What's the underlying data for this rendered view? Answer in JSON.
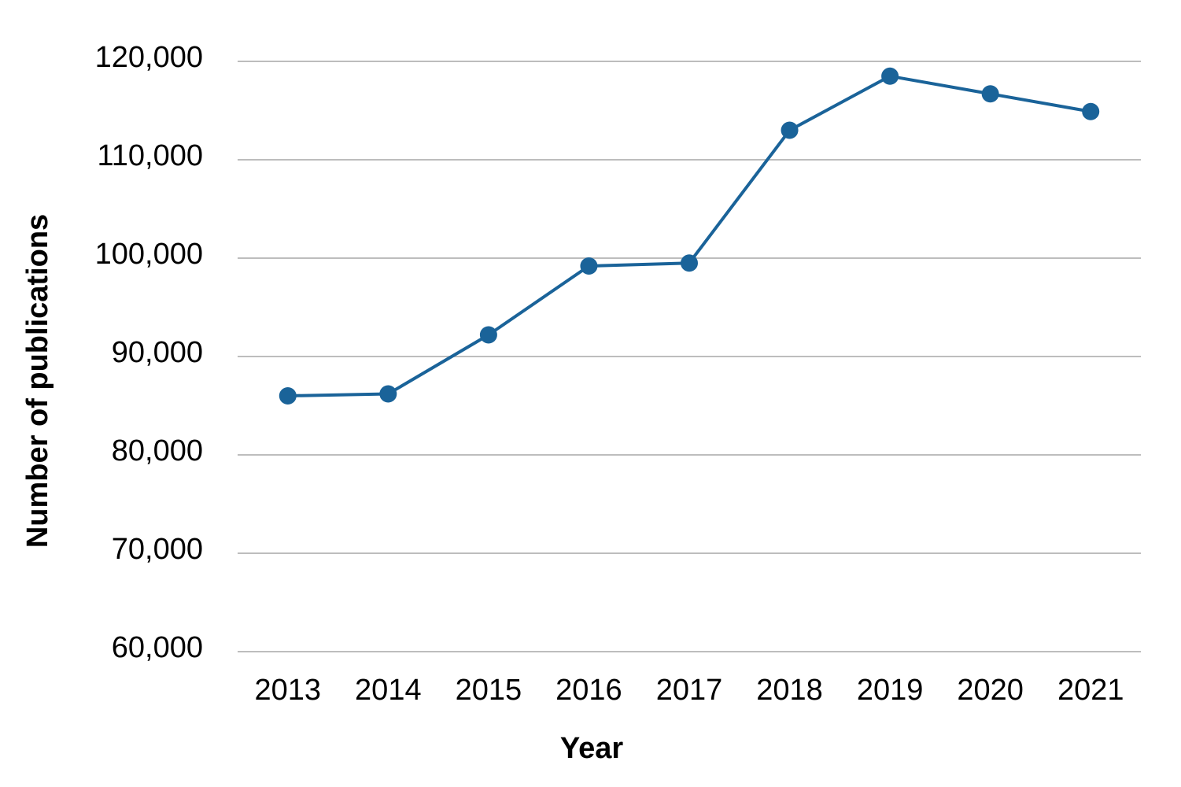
{
  "chart_data": {
    "type": "line",
    "x_label": "Year",
    "y_label": "Number of publications",
    "categories": [
      "2013",
      "2014",
      "2015",
      "2016",
      "2017",
      "2018",
      "2019",
      "2020",
      "2021"
    ],
    "series": [
      {
        "color": "#1a6399",
        "values": [
          86000,
          86200,
          92200,
          99200,
          99500,
          113000,
          118500,
          116700,
          114900
        ]
      }
    ],
    "ylim": [
      60000,
      120000
    ],
    "yticks": [
      {
        "value": 60000,
        "label": "60,000"
      },
      {
        "value": 70000,
        "label": "70,000"
      },
      {
        "value": 80000,
        "label": "80,000"
      },
      {
        "value": 90000,
        "label": "90,000"
      },
      {
        "value": 100000,
        "label": "100,000"
      },
      {
        "value": 110000,
        "label": "110,000"
      },
      {
        "value": 120000,
        "label": "120,000"
      }
    ],
    "grid": true
  }
}
